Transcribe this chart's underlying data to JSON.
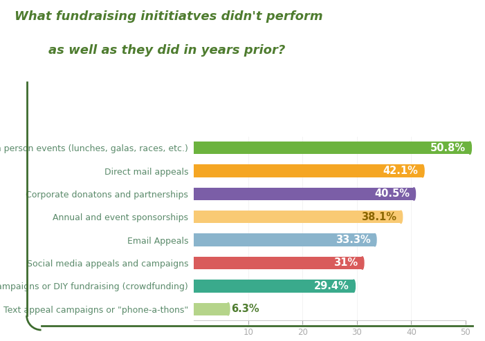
{
  "title_line1": "What fundraising inititiatves didn't perform",
  "title_line2": "as well as they did in years prior?",
  "title_color": "#4e7c2f",
  "categories": [
    "One-time in person events (lunches, galas, races, etc.)",
    "Direct mail appeals",
    "Corporate donatons and partnerships",
    "Annual and event sponsorships",
    "Email Appeals",
    "Social media appeals and campaigns",
    "Peer-to-peer campaigns or DIY fundraising (crowdfunding)",
    "Text appeal campaigns or \"phone-a-thons\""
  ],
  "values": [
    50.8,
    42.1,
    40.5,
    38.1,
    33.3,
    31.0,
    29.4,
    6.3
  ],
  "bar_colors": [
    "#6cb33e",
    "#f5a623",
    "#7b5ea7",
    "#f9ca74",
    "#8ab4cc",
    "#d95b5b",
    "#3aaa8c",
    "#b5d48a"
  ],
  "label_colors": [
    "#ffffff",
    "#ffffff",
    "#ffffff",
    "#8a6500",
    "#ffffff",
    "#ffffff",
    "#ffffff",
    "#4e7c2f"
  ],
  "value_labels": [
    "50.8%",
    "42.1%",
    "40.5%",
    "38.1%",
    "33.3%",
    "31%",
    "29.4%",
    "6.3%"
  ],
  "xlim": [
    0,
    50
  ],
  "xticks": [
    10,
    20,
    30,
    40,
    50
  ],
  "bar_height": 0.55,
  "background_color": "#ffffff",
  "value_fontsize": 10.5,
  "category_fontsize": 9,
  "category_color": "#5a8a6a",
  "border_color": "#3d6b2e",
  "tick_color": "#aaaaaa"
}
